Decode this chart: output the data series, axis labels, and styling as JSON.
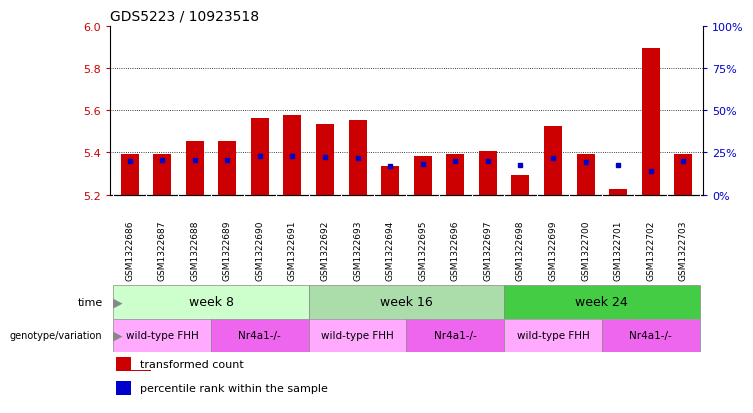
{
  "title": "GDS5223 / 10923518",
  "samples": [
    "GSM1322686",
    "GSM1322687",
    "GSM1322688",
    "GSM1322689",
    "GSM1322690",
    "GSM1322691",
    "GSM1322692",
    "GSM1322693",
    "GSM1322694",
    "GSM1322695",
    "GSM1322696",
    "GSM1322697",
    "GSM1322698",
    "GSM1322699",
    "GSM1322700",
    "GSM1322701",
    "GSM1322702",
    "GSM1322703"
  ],
  "bar_tops": [
    5.395,
    5.395,
    5.455,
    5.455,
    5.565,
    5.575,
    5.535,
    5.555,
    5.335,
    5.385,
    5.395,
    5.405,
    5.295,
    5.525,
    5.395,
    5.225,
    5.895,
    5.395
  ],
  "blue_pos": [
    5.36,
    5.365,
    5.365,
    5.365,
    5.385,
    5.385,
    5.38,
    5.375,
    5.335,
    5.345,
    5.36,
    5.36,
    5.34,
    5.375,
    5.355,
    5.34,
    5.31,
    5.36
  ],
  "ymin": 5.2,
  "ymax": 6.0,
  "yticks_left": [
    5.2,
    5.4,
    5.6,
    5.8,
    6.0
  ],
  "yticks_right": [
    0,
    25,
    50,
    75,
    100
  ],
  "bar_color": "#cc0000",
  "blue_color": "#0000cc",
  "bar_width": 0.55,
  "time_groups": [
    {
      "label": "week 8",
      "start": 0,
      "end": 5,
      "color": "#ccffcc"
    },
    {
      "label": "week 16",
      "start": 6,
      "end": 11,
      "color": "#aaddaa"
    },
    {
      "label": "week 24",
      "start": 12,
      "end": 17,
      "color": "#44cc44"
    }
  ],
  "geno_groups": [
    {
      "label": "wild-type FHH",
      "start": 0,
      "end": 2,
      "color": "#ffaaff"
    },
    {
      "label": "Nr4a1-/-",
      "start": 3,
      "end": 5,
      "color": "#ee66ee"
    },
    {
      "label": "wild-type FHH",
      "start": 6,
      "end": 8,
      "color": "#ffaaff"
    },
    {
      "label": "Nr4a1-/-",
      "start": 9,
      "end": 11,
      "color": "#ee66ee"
    },
    {
      "label": "wild-type FHH",
      "start": 12,
      "end": 14,
      "color": "#ffaaff"
    },
    {
      "label": "Nr4a1-/-",
      "start": 15,
      "end": 17,
      "color": "#ee66ee"
    }
  ],
  "legend_items": [
    {
      "label": "transformed count",
      "color": "#cc0000"
    },
    {
      "label": "percentile rank within the sample",
      "color": "#0000cc"
    }
  ],
  "background_color": "#ffffff",
  "plot_bg_color": "#ffffff",
  "sample_bg_color": "#cccccc",
  "grid_color": "#000000",
  "tick_color_left": "#cc0000",
  "tick_color_right": "#0000cc"
}
